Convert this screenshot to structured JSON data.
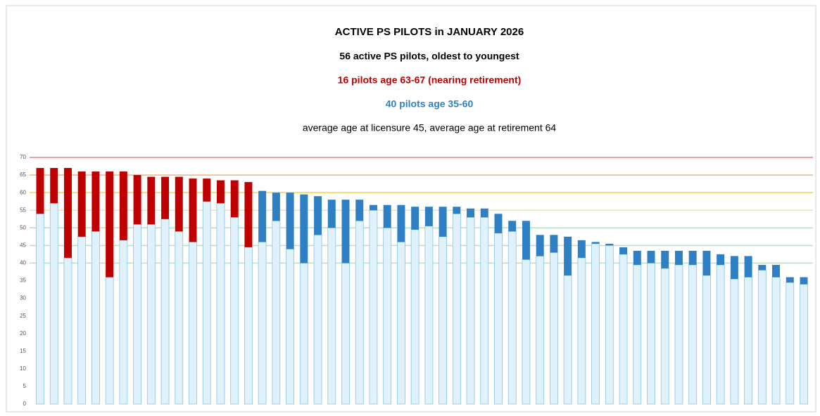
{
  "chart_data": {
    "type": "stacked_bar",
    "title": "ACTIVE PS PILOTS  in  JANUARY 2026",
    "subtitles": [
      {
        "text": "56 active PS pilots, oldest to youngest",
        "color": "#000000",
        "bold": true
      },
      {
        "text": "16 pilots age 63-67 (nearing retirement)",
        "color": "#c00000",
        "bold": true
      },
      {
        "text": "40 pilots age 35-60",
        "color": "#2e7fc4",
        "bold": true
      },
      {
        "text": "average age at licensure 45, average age at retirement 64",
        "color": "#000000",
        "bold": false
      }
    ],
    "ylim": [
      0,
      70
    ],
    "yticks": [
      0,
      5,
      10,
      15,
      20,
      25,
      30,
      35,
      40,
      45,
      50,
      55,
      60,
      65,
      70
    ],
    "grid_colors": [
      null,
      null,
      null,
      null,
      null,
      null,
      null,
      null,
      "#b6e0c4",
      "#b6e0c4",
      "#b6e0c4",
      "#f3e3a0",
      "#f2d060",
      "#f3b27a",
      "#e88080"
    ],
    "series": [
      {
        "color": "#dff2fb",
        "values": [
          54,
          57,
          41.5,
          47.5,
          49,
          36,
          46.5,
          51,
          51,
          52.5,
          49,
          46,
          57.5,
          57,
          53,
          44.5,
          46,
          52,
          44,
          40,
          48,
          50,
          40,
          52,
          55,
          50,
          46,
          49.5,
          50.5,
          47.5,
          54,
          53,
          53,
          48.5,
          49,
          41,
          42,
          43,
          36.5,
          41.5,
          45.5,
          45,
          42.5,
          39.5,
          40,
          38.5,
          39.5,
          39.5,
          36.5,
          39.5,
          35.5,
          36,
          38,
          36,
          34.5,
          34
        ]
      },
      {
        "color": "#c00000",
        "values": [
          13,
          10,
          25.5,
          18.5,
          17,
          30,
          19.5,
          14,
          13.5,
          12,
          15.5,
          18,
          6.5,
          6.5,
          10.5,
          18.5,
          null,
          null,
          null,
          null,
          null,
          null,
          null,
          null,
          null,
          null,
          null,
          null,
          null,
          null,
          null,
          null,
          null,
          null,
          null,
          null,
          null,
          null,
          null,
          null,
          null,
          null,
          null,
          null,
          null,
          null,
          null,
          null,
          null,
          null,
          null,
          null,
          null,
          null,
          null,
          null
        ]
      },
      {
        "color": "#2e7fc4",
        "values": [
          null,
          null,
          null,
          null,
          null,
          null,
          null,
          null,
          null,
          null,
          null,
          null,
          null,
          null,
          null,
          null,
          14.5,
          8,
          16,
          19.5,
          11,
          8,
          18,
          6,
          1.5,
          6.5,
          10.5,
          6.5,
          5.5,
          8.5,
          2,
          2.5,
          2.5,
          5.5,
          3,
          11,
          6,
          5,
          11,
          5,
          0.5,
          0.5,
          2,
          4,
          3.5,
          5,
          4,
          4,
          7,
          3,
          6.5,
          6,
          1.5,
          3.5,
          1.5,
          2
        ]
      }
    ]
  }
}
